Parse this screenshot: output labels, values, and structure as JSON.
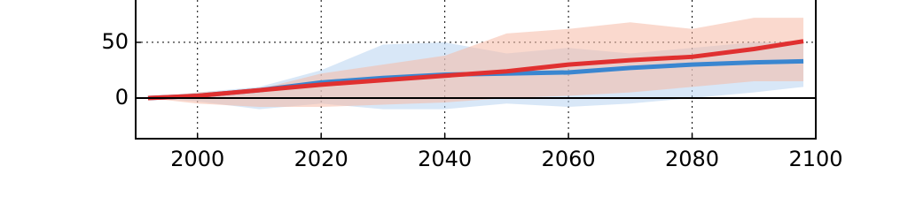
{
  "chart_data": {
    "type": "line",
    "x": [
      1992,
      2000,
      2010,
      2020,
      2030,
      2040,
      2050,
      2060,
      2070,
      2080,
      2090,
      2098
    ],
    "series": [
      {
        "color": "#3a86d0",
        "band_color": "#b8d4f0",
        "values": [
          0,
          2,
          7,
          14,
          18,
          21,
          22,
          23,
          27,
          30,
          32,
          33
        ],
        "lower": [
          0,
          -3,
          -10,
          -5,
          -10,
          -10,
          -5,
          -8,
          -5,
          0,
          5,
          10
        ],
        "upper": [
          0,
          5,
          10,
          25,
          48,
          50,
          40,
          45,
          40,
          45,
          50,
          50
        ]
      },
      {
        "color": "#e03030",
        "band_color": "#f6b9a6",
        "values": [
          0,
          2,
          7,
          12,
          16,
          20,
          24,
          30,
          34,
          37,
          44,
          51
        ],
        "lower": [
          0,
          -5,
          -8,
          -8,
          -6,
          -4,
          0,
          2,
          5,
          10,
          15,
          15
        ],
        "upper": [
          0,
          5,
          8,
          22,
          30,
          38,
          58,
          62,
          68,
          62,
          72,
          72
        ]
      }
    ],
    "xlim": [
      1990,
      2100
    ],
    "xticks": [
      2000,
      2020,
      2040,
      2060,
      2080,
      2100
    ],
    "ylim": [
      -36.5,
      88
    ],
    "yticks": [
      0,
      50
    ],
    "grid": true
  }
}
